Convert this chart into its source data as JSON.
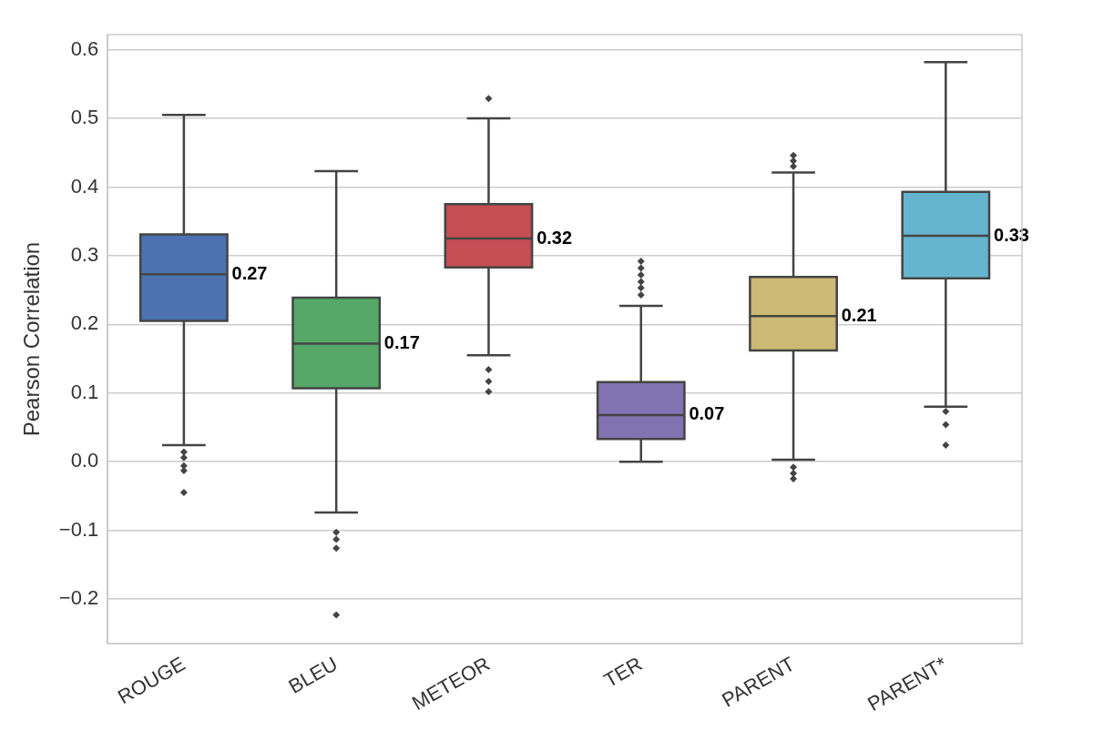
{
  "chart_data": {
    "type": "box",
    "ylabel": "Pearson Correlation",
    "categories": [
      "ROUGE",
      "BLEU",
      "METEOR",
      "TER",
      "PARENT",
      "PARENT*"
    ],
    "colors": [
      "#4c72b0",
      "#55a868",
      "#c44e52",
      "#8172b2",
      "#ccb974",
      "#64b5cd"
    ],
    "boxes": [
      {
        "low": 0.024,
        "q1": 0.205,
        "median": 0.273,
        "q3": 0.331,
        "high": 0.505,
        "outliers": [
          0.014,
          0.006,
          -0.006,
          -0.013,
          -0.045
        ]
      },
      {
        "low": -0.074,
        "q1": 0.107,
        "median": 0.172,
        "q3": 0.239,
        "high": 0.423,
        "outliers": [
          -0.103,
          -0.113,
          -0.126,
          -0.223
        ]
      },
      {
        "low": 0.155,
        "q1": 0.283,
        "median": 0.325,
        "q3": 0.375,
        "high": 0.5,
        "outliers": [
          0.529,
          0.134,
          0.117,
          0.102
        ]
      },
      {
        "low": 0.0,
        "q1": 0.033,
        "median": 0.068,
        "q3": 0.116,
        "high": 0.227,
        "outliers": [
          0.292,
          0.282,
          0.272,
          0.262,
          0.253,
          0.243
        ]
      },
      {
        "low": 0.003,
        "q1": 0.162,
        "median": 0.212,
        "q3": 0.269,
        "high": 0.421,
        "outliers": [
          0.446,
          0.438,
          0.43,
          -0.008,
          -0.017,
          -0.025
        ]
      },
      {
        "low": 0.08,
        "q1": 0.267,
        "median": 0.329,
        "q3": 0.393,
        "high": 0.582,
        "outliers": [
          0.073,
          0.054,
          0.024
        ]
      }
    ],
    "ylim": [
      -0.265,
      0.622
    ],
    "yticks": [
      -0.2,
      -0.1,
      {
        "value": 0,
        "label": "0.0"
      },
      0.1,
      0.2,
      0.3,
      0.4,
      0.5,
      0.6
    ],
    "grid": "y",
    "legend": false,
    "marker": "diamond",
    "annotations": [
      {
        "text": "0.27",
        "x": "ROUGE",
        "y": 0.273
      },
      {
        "text": "0.17",
        "x": "BLEU",
        "y": 0.172
      },
      {
        "text": "0.32",
        "x": "METEOR",
        "y": 0.325
      },
      {
        "text": "0.07",
        "x": "TER",
        "y": 0.068
      },
      {
        "text": "0.21",
        "x": "PARENT",
        "y": 0.212
      },
      {
        "text": "0.33",
        "x": "PARENT*",
        "y": 0.329
      }
    ]
  }
}
